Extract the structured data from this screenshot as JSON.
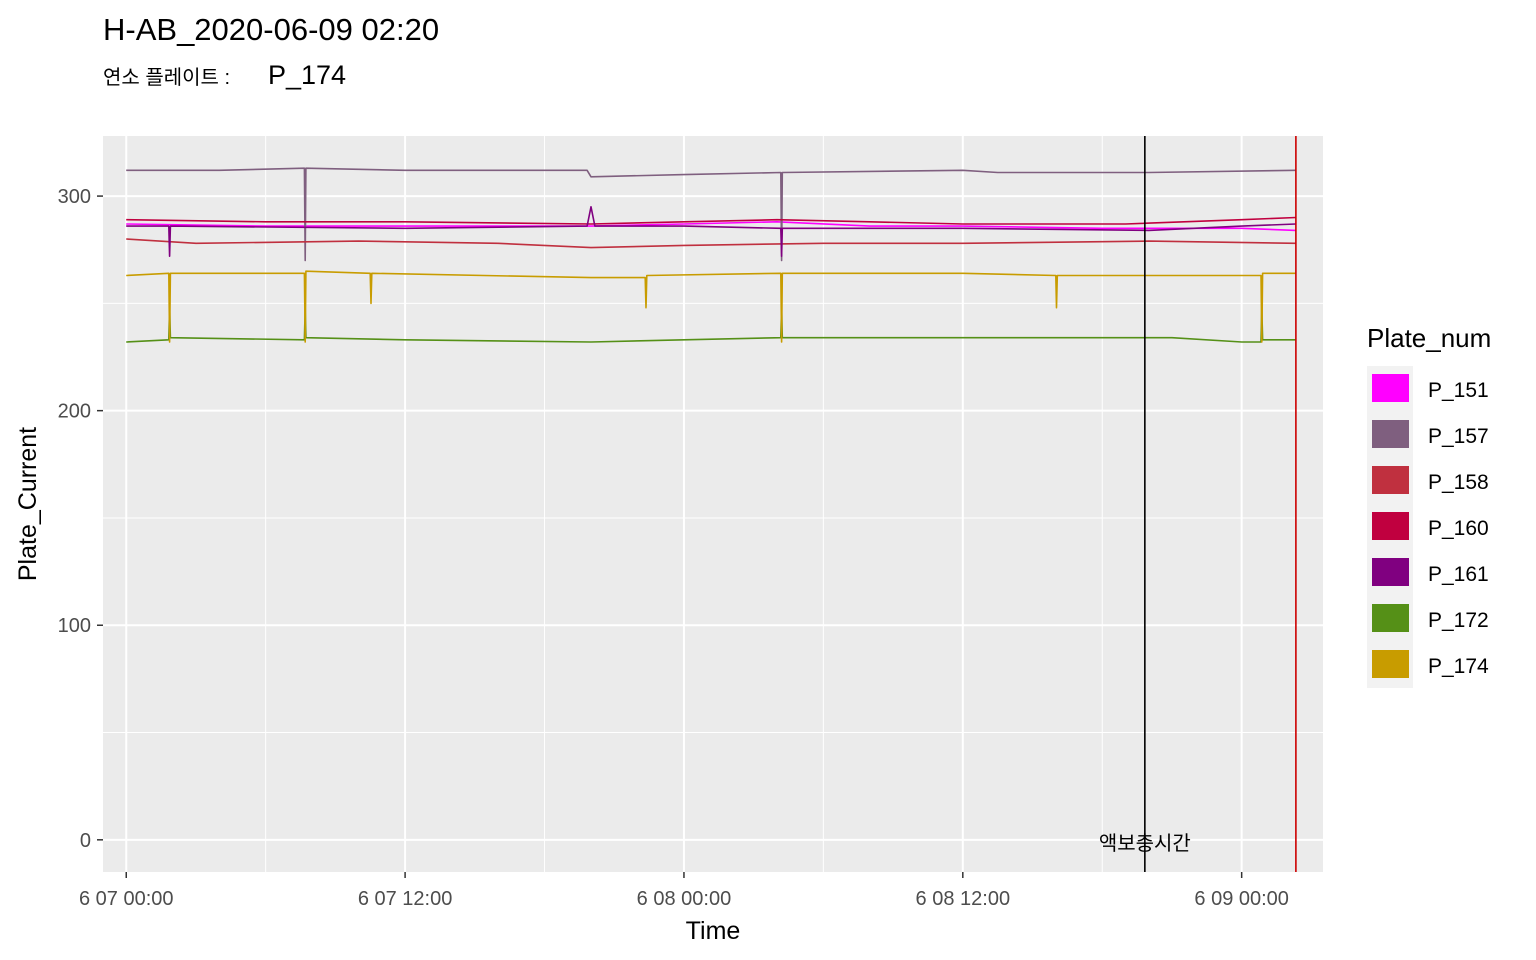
{
  "chart_data": {
    "type": "line",
    "title": "H-AB_2020-06-09 02:20",
    "subtitle_label": "연소 플레이트 :",
    "subtitle_value": "P_174",
    "xlabel": "Time",
    "ylabel": "Plate_Current",
    "x_range": [
      "2020-06-06 23:00",
      "2020-06-09 03:30"
    ],
    "ylim": [
      -15,
      328
    ],
    "x_ticks": [
      {
        "value": "2020-06-07 00:00",
        "label": "6 07 00:00"
      },
      {
        "value": "2020-06-07 12:00",
        "label": "6 07 12:00"
      },
      {
        "value": "2020-06-08 00:00",
        "label": "6 08 00:00"
      },
      {
        "value": "2020-06-08 12:00",
        "label": "6 08 12:00"
      },
      {
        "value": "2020-06-09 00:00",
        "label": "6 09 00:00"
      }
    ],
    "y_ticks": [
      0,
      100,
      200,
      300
    ],
    "grid": true,
    "legend_title": "Plate_num",
    "legend_position": "right",
    "series": [
      {
        "name": "P_151",
        "color": "#FF00FF",
        "x": [
          "2020-06-07 00:00",
          "2020-06-07 06:00",
          "2020-06-07 12:00",
          "2020-06-07 20:00",
          "2020-06-08 00:00",
          "2020-06-08 04:00",
          "2020-06-08 08:00",
          "2020-06-08 12:00",
          "2020-06-08 18:00",
          "2020-06-09 00:00",
          "2020-06-09 02:20"
        ],
        "y": [
          287,
          286,
          286,
          286,
          287,
          288,
          286,
          286,
          285,
          285,
          284
        ]
      },
      {
        "name": "P_157",
        "color": "#7F5F7F",
        "x": [
          "2020-06-07 00:00",
          "2020-06-07 04:00",
          "2020-06-07 07:40",
          "2020-06-07 07:42",
          "2020-06-07 07:44",
          "2020-06-07 12:00",
          "2020-06-07 19:50",
          "2020-06-07 20:00",
          "2020-06-08 00:00",
          "2020-06-08 04:10",
          "2020-06-08 04:12",
          "2020-06-08 04:14",
          "2020-06-08 12:00",
          "2020-06-08 13:30",
          "2020-06-08 20:00",
          "2020-06-09 02:20"
        ],
        "y": [
          312,
          312,
          313,
          270,
          313,
          312,
          312,
          309,
          310,
          311,
          270,
          311,
          312,
          311,
          311,
          312
        ]
      },
      {
        "name": "P_158",
        "color": "#C0303F",
        "x": [
          "2020-06-07 00:00",
          "2020-06-07 03:00",
          "2020-06-07 10:00",
          "2020-06-07 16:00",
          "2020-06-07 20:00",
          "2020-06-08 00:00",
          "2020-06-08 06:00",
          "2020-06-08 12:00",
          "2020-06-08 20:00",
          "2020-06-09 02:20"
        ],
        "y": [
          280,
          278,
          279,
          278,
          276,
          277,
          278,
          278,
          279,
          278
        ]
      },
      {
        "name": "P_160",
        "color": "#C0003F",
        "x": [
          "2020-06-07 00:00",
          "2020-06-07 06:00",
          "2020-06-07 12:00",
          "2020-06-07 20:00",
          "2020-06-08 00:00",
          "2020-06-08 04:00",
          "2020-06-08 08:00",
          "2020-06-08 12:00",
          "2020-06-08 19:00",
          "2020-06-09 00:00",
          "2020-06-09 02:20"
        ],
        "y": [
          289,
          288,
          288,
          287,
          288,
          289,
          288,
          287,
          287,
          289,
          290
        ]
      },
      {
        "name": "P_161",
        "color": "#800080",
        "x": [
          "2020-06-07 00:00",
          "2020-06-07 01:50",
          "2020-06-07 01:52",
          "2020-06-07 01:54",
          "2020-06-07 12:00",
          "2020-06-07 19:50",
          "2020-06-07 20:00",
          "2020-06-07 20:10",
          "2020-06-08 00:00",
          "2020-06-08 04:10",
          "2020-06-08 04:12",
          "2020-06-08 04:14",
          "2020-06-08 12:00",
          "2020-06-08 20:00",
          "2020-06-09 00:00",
          "2020-06-09 02:20"
        ],
        "y": [
          286,
          286,
          272,
          286,
          285,
          286,
          295,
          286,
          286,
          285,
          272,
          285,
          285,
          284,
          286,
          287
        ]
      },
      {
        "name": "P_172",
        "color": "#559017",
        "x": [
          "2020-06-07 00:00",
          "2020-06-07 01:50",
          "2020-06-07 01:52",
          "2020-06-07 01:54",
          "2020-06-07 07:40",
          "2020-06-07 07:42",
          "2020-06-07 07:44",
          "2020-06-07 12:00",
          "2020-06-07 20:00",
          "2020-06-08 00:00",
          "2020-06-08 04:10",
          "2020-06-08 04:12",
          "2020-06-08 04:14",
          "2020-06-08 12:00",
          "2020-06-08 21:00",
          "2020-06-09 00:00",
          "2020-06-09 00:50",
          "2020-06-09 00:52",
          "2020-06-09 00:54",
          "2020-06-09 02:20"
        ],
        "y": [
          232,
          233,
          248,
          234,
          233,
          248,
          234,
          233,
          232,
          233,
          234,
          248,
          234,
          234,
          234,
          232,
          232,
          248,
          233,
          233
        ]
      },
      {
        "name": "P_174",
        "color": "#C89C00",
        "x": [
          "2020-06-07 00:00",
          "2020-06-07 01:50",
          "2020-06-07 01:52",
          "2020-06-07 01:54",
          "2020-06-07 07:40",
          "2020-06-07 07:42",
          "2020-06-07 07:44",
          "2020-06-07 10:30",
          "2020-06-07 10:32",
          "2020-06-07 10:34",
          "2020-06-07 20:00",
          "2020-06-07 22:20",
          "2020-06-07 22:22",
          "2020-06-07 22:24",
          "2020-06-08 04:10",
          "2020-06-08 04:12",
          "2020-06-08 04:14",
          "2020-06-08 12:00",
          "2020-06-08 16:00",
          "2020-06-08 16:02",
          "2020-06-08 16:04",
          "2020-06-09 00:50",
          "2020-06-09 00:52",
          "2020-06-09 00:54",
          "2020-06-09 02:20"
        ],
        "y": [
          263,
          264,
          232,
          264,
          264,
          232,
          265,
          264,
          250,
          264,
          262,
          262,
          248,
          263,
          264,
          232,
          264,
          264,
          263,
          248,
          263,
          263,
          232,
          264,
          264
        ]
      }
    ],
    "vlines": [
      {
        "x": "2020-06-08 19:50",
        "color": "#000000",
        "label": "액보충시간"
      },
      {
        "x": "2020-06-09 02:20",
        "color": "#CC0000",
        "label": ""
      }
    ]
  }
}
